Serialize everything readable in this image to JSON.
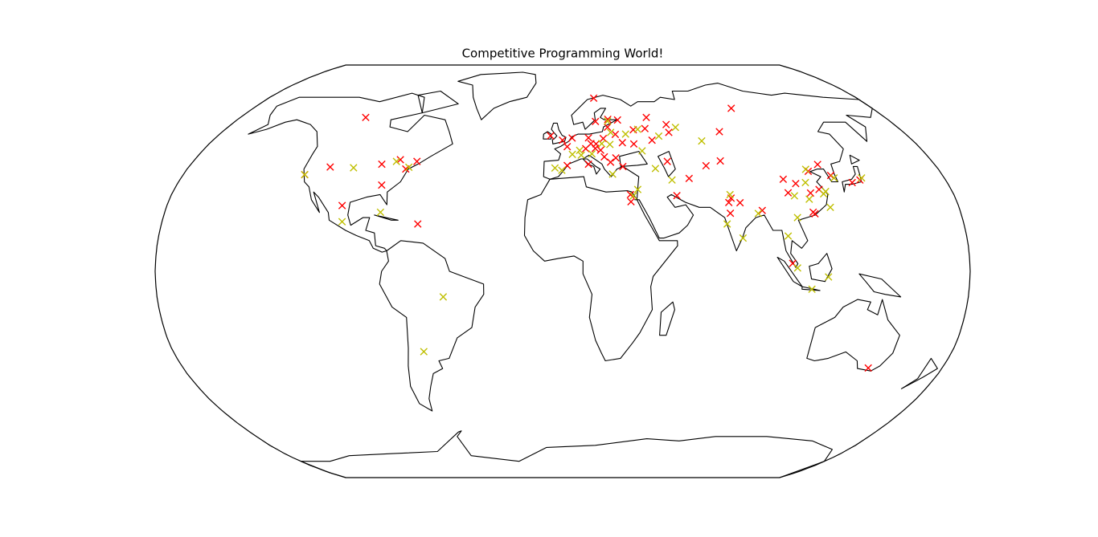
{
  "chart_data": {
    "type": "scatter",
    "projection": "robinson",
    "title": "Competitive Programming World!",
    "series": [
      {
        "color": "#ff0000",
        "x": [
          -110,
          -122.4,
          -111.9,
          -87.6,
          -79.4,
          -75.2,
          -71,
          -84.4,
          -100.3,
          -65,
          -6.3,
          2.2,
          -0.1,
          2.3,
          4.9,
          13.4,
          21,
          14.4,
          16.4,
          19,
          11.6,
          30.5,
          37.6,
          30.3,
          24.1,
          27.6,
          26.1,
          23.3,
          12.5,
          29,
          18,
          36.2,
          44,
          19,
          46.7,
          56.2,
          46,
          56,
          82.9,
          98,
          51,
          52.5,
          59.6,
          69.2,
          76.9,
          31.2,
          31.2,
          77.2,
          80.9,
          75.8,
          75.8,
          90.4,
          101.7,
          103.8,
          104,
          108.9,
          114.3,
          123.4,
          117.2,
          118.8,
          113.3,
          114,
          127,
          139.7,
          135.5,
          145,
          17,
          25,
          20.5
        ],
        "values": [
          61,
          37.8,
          40.8,
          41.9,
          43.7,
          40,
          43,
          33.7,
          25.7,
          18.5,
          53.3,
          41.4,
          51.5,
          48.9,
          52.4,
          52.5,
          52.2,
          50.1,
          48.2,
          47.5,
          48.1,
          50.5,
          55.8,
          59.9,
          56.9,
          53.9,
          44.4,
          42.7,
          41.9,
          41,
          59.3,
          50,
          56.3,
          69.6,
          61,
          58,
          51.5,
          54.7,
          55,
          65,
          43,
          29.6,
          36.3,
          41.3,
          43.2,
          27.2,
          30,
          28.6,
          26.8,
          22.7,
          26.9,
          23.8,
          3.1,
          36,
          30.7,
          34.3,
          30.6,
          41.8,
          39.1,
          32,
          23.1,
          22.5,
          37.5,
          35.7,
          34.7,
          -37.8,
          50,
          60.2,
          44.8
        ]
      },
      {
        "color": "#bfbf00",
        "x": [
          -122.4,
          -100.5,
          -81,
          -74,
          -99.1,
          -82.4,
          -53,
          -64.2,
          -3.7,
          -0.4,
          4.8,
          8.5,
          9.2,
          19.9,
          24,
          25.3,
          24.7,
          33,
          40,
          50.1,
          39.7,
          60.6,
          44.5,
          51.4,
          34.8,
          32.5,
          77,
          73.8,
          80.3,
          88.4,
          105.8,
          100.5,
          103.8,
          110.4,
          117.5,
          116.4,
          106.5,
          121.5,
          120.2,
          113.6,
          112.9,
          121.5,
          128,
          141,
          71.4,
          14.5,
          23.7
        ],
        "values": [
          37.8,
          40.5,
          43,
          40.7,
          19.4,
          23.1,
          -10,
          -31.4,
          40.4,
          39.5,
          45.8,
          47.4,
          45.5,
          50.1,
          49.8,
          54.7,
          59.4,
          54,
          56,
          53.2,
          47.2,
          56.8,
          40.2,
          35.7,
          32,
          29.5,
          30,
          18.5,
          13,
          22.6,
          21,
          13.8,
          1.3,
          -7,
          -2.2,
          39.9,
          29.5,
          31.2,
          30.3,
          34.7,
          28.2,
          25,
          36.5,
          36.5,
          51.2,
          46,
          38
        ]
      }
    ]
  }
}
